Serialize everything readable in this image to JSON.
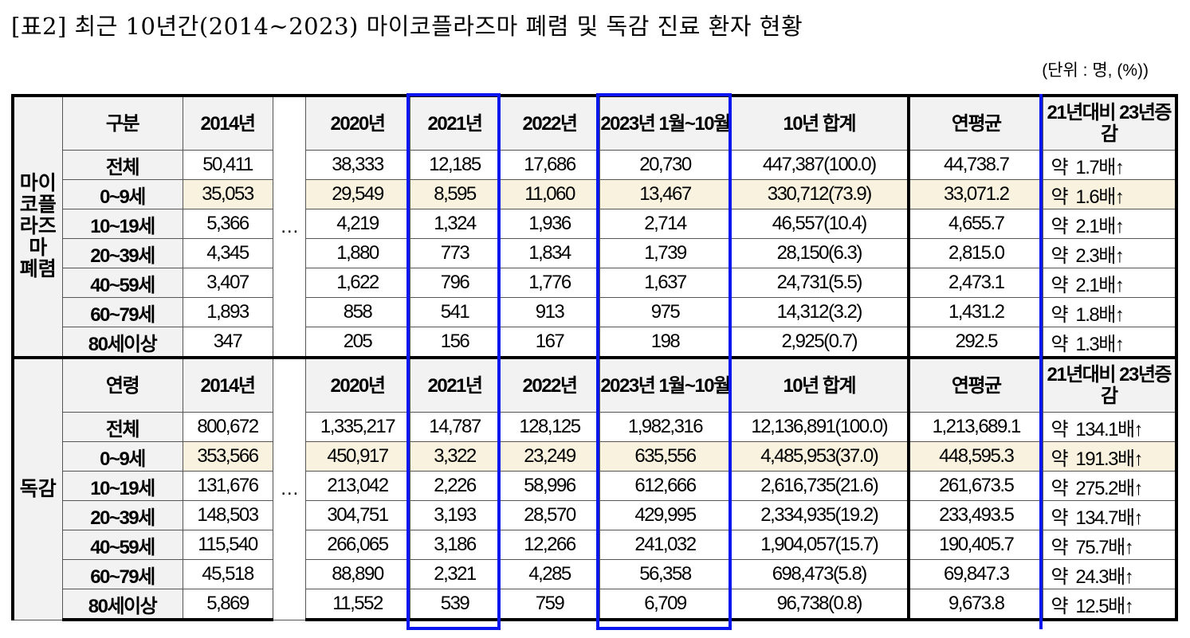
{
  "title": "[표2] 최근 10년간(2014~2023) 마이코플라즈마 폐렴 및 독감 진료 환자 현황",
  "unit": "(단위 : 명, (%))",
  "colors": {
    "highlight": "#f8f2df",
    "header_bg": "#f2f2f2",
    "blue_border": "#0a16f0"
  },
  "ellipsis": "…",
  "sections": [
    {
      "group_label": "마이코플라즈마 폐렴",
      "headers": [
        "구분",
        "2014년",
        "2020년",
        "2021년",
        "2022년",
        "2023년 1월~10월",
        "10년 합계",
        "연평균",
        "21년대비 23년증감"
      ],
      "rows": [
        {
          "label": "전체",
          "y2014": "50,411",
          "y2020": "38,333",
          "y2021": "12,185",
          "y2022": "17,686",
          "y2023": "20,730",
          "total": "447,387(100.0)",
          "avg": "44,738.7",
          "change": "약  1.7배↑"
        },
        {
          "label": "0~9세",
          "y2014": "35,053",
          "y2020": "29,549",
          "y2021": "8,595",
          "y2022": "11,060",
          "y2023": "13,467",
          "total": "330,712(73.9)",
          "avg": "33,071.2",
          "change": "약  1.6배↑",
          "highlight": true
        },
        {
          "label": "10~19세",
          "y2014": "5,366",
          "y2020": "4,219",
          "y2021": "1,324",
          "y2022": "1,936",
          "y2023": "2,714",
          "total": "46,557(10.4)",
          "avg": "4,655.7",
          "change": "약  2.1배↑"
        },
        {
          "label": "20~39세",
          "y2014": "4,345",
          "y2020": "1,880",
          "y2021": "773",
          "y2022": "1,834",
          "y2023": "1,739",
          "total": "28,150(6.3)",
          "avg": "2,815.0",
          "change": "약  2.3배↑"
        },
        {
          "label": "40~59세",
          "y2014": "3,407",
          "y2020": "1,622",
          "y2021": "796",
          "y2022": "1,776",
          "y2023": "1,637",
          "total": "24,731(5.5)",
          "avg": "2,473.1",
          "change": "약  2.1배↑"
        },
        {
          "label": "60~79세",
          "y2014": "1,893",
          "y2020": "858",
          "y2021": "541",
          "y2022": "913",
          "y2023": "975",
          "total": "14,312(3.2)",
          "avg": "1,431.2",
          "change": "약  1.8배↑"
        },
        {
          "label": "80세이상",
          "y2014": "347",
          "y2020": "205",
          "y2021": "156",
          "y2022": "167",
          "y2023": "198",
          "total": "2,925(0.7)",
          "avg": "292.5",
          "change": "약  1.3배↑"
        }
      ]
    },
    {
      "group_label": "독감",
      "headers": [
        "연령",
        "2014년",
        "2020년",
        "2021년",
        "2022년",
        "2023년 1월~10월",
        "10년 합계",
        "연평균",
        "21년대비 23년증감"
      ],
      "rows": [
        {
          "label": "전체",
          "y2014": "800,672",
          "y2020": "1,335,217",
          "y2021": "14,787",
          "y2022": "128,125",
          "y2023": "1,982,316",
          "total": "12,136,891(100.0)",
          "avg": "1,213,689.1",
          "change": "약  134.1배↑"
        },
        {
          "label": "0~9세",
          "y2014": "353,566",
          "y2020": "450,917",
          "y2021": "3,322",
          "y2022": "23,249",
          "y2023": "635,556",
          "total": "4,485,953(37.0)",
          "avg": "448,595.3",
          "change": "약  191.3배↑",
          "highlight": true
        },
        {
          "label": "10~19세",
          "y2014": "131,676",
          "y2020": "213,042",
          "y2021": "2,226",
          "y2022": "58,996",
          "y2023": "612,666",
          "total": "2,616,735(21.6)",
          "avg": "261,673.5",
          "change": "약  275.2배↑"
        },
        {
          "label": "20~39세",
          "y2014": "148,503",
          "y2020": "304,751",
          "y2021": "3,193",
          "y2022": "28,570",
          "y2023": "429,995",
          "total": "2,334,935(19.2)",
          "avg": "233,493.5",
          "change": "약  134.7배↑"
        },
        {
          "label": "40~59세",
          "y2014": "115,540",
          "y2020": "266,065",
          "y2021": "3,186",
          "y2022": "12,266",
          "y2023": "241,032",
          "total": "1,904,057(15.7)",
          "avg": "190,405.7",
          "change": "약  75.7배↑"
        },
        {
          "label": "60~79세",
          "y2014": "45,518",
          "y2020": "88,890",
          "y2021": "2,321",
          "y2022": "4,285",
          "y2023": "56,358",
          "total": "698,473(5.8)",
          "avg": "69,847.3",
          "change": "약  24.3배↑"
        },
        {
          "label": "80세이상",
          "y2014": "5,869",
          "y2020": "11,552",
          "y2021": "539",
          "y2022": "759",
          "y2023": "6,709",
          "total": "96,738(0.8)",
          "avg": "9,673.8",
          "change": "약  12.5배↑"
        }
      ]
    }
  ]
}
